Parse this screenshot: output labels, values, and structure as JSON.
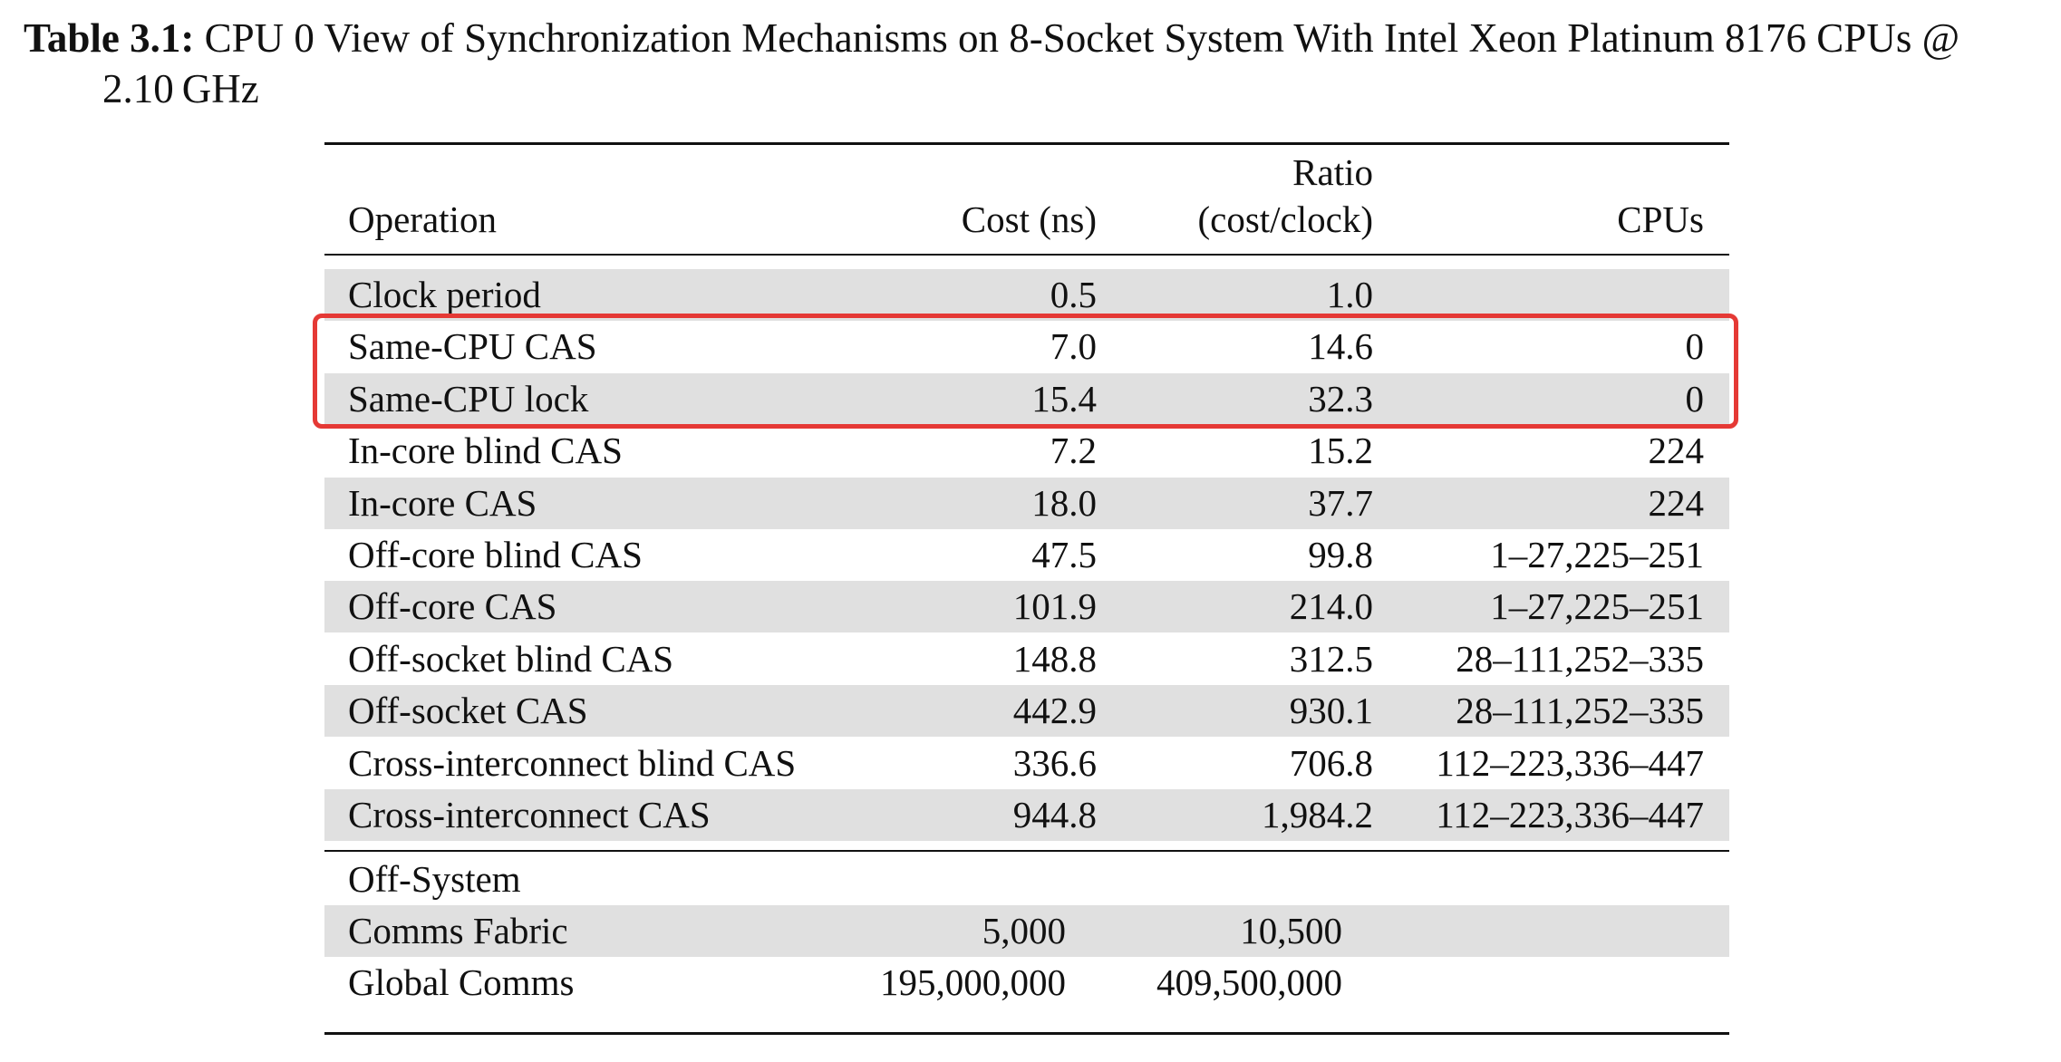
{
  "caption": {
    "label": "Table 3.1:",
    "line1": "CPU 0 View of Synchronization Mechanisms on 8-Socket System With Intel Xeon Platinum 8176 CPUs @",
    "line2": "2.10 GHz"
  },
  "table": {
    "headers": {
      "operation": "Operation",
      "cost": "Cost (ns)",
      "ratio_top": "Ratio",
      "ratio_bottom": "(cost/clock)",
      "cpus": "CPUs"
    },
    "rows": [
      {
        "operation": "Clock period",
        "cost": "0.5",
        "ratio": "1.0",
        "cpus": ""
      },
      {
        "operation": "Same-CPU CAS",
        "cost": "7.0",
        "ratio": "14.6",
        "cpus": "0"
      },
      {
        "operation": "Same-CPU lock",
        "cost": "15.4",
        "ratio": "32.3",
        "cpus": "0"
      },
      {
        "operation": "In-core blind CAS",
        "cost": "7.2",
        "ratio": "15.2",
        "cpus": "224"
      },
      {
        "operation": "In-core CAS",
        "cost": "18.0",
        "ratio": "37.7",
        "cpus": "224"
      },
      {
        "operation": "Off-core blind CAS",
        "cost": "47.5",
        "ratio": "99.8",
        "cpus": "1–27,225–251"
      },
      {
        "operation": "Off-core CAS",
        "cost": "101.9",
        "ratio": "214.0",
        "cpus": "1–27,225–251"
      },
      {
        "operation": "Off-socket blind CAS",
        "cost": "148.8",
        "ratio": "312.5",
        "cpus": "28–111,252–335"
      },
      {
        "operation": "Off-socket CAS",
        "cost": "442.9",
        "ratio": "930.1",
        "cpus": "28–111,252–335"
      },
      {
        "operation": "Cross-interconnect blind CAS",
        "cost": "336.6",
        "ratio": "706.8",
        "cpus": "112–223,336–447"
      },
      {
        "operation": "Cross-interconnect CAS",
        "cost": "944.8",
        "ratio": "1,984.2",
        "cpus": "112–223,336–447"
      }
    ],
    "off_system": {
      "heading": "Off-System",
      "rows": [
        {
          "operation": "Comms Fabric",
          "cost": "5,000",
          "ratio": "10,500"
        },
        {
          "operation": "Global Comms",
          "cost": "195,000,000",
          "ratio": "409,500,000"
        }
      ]
    }
  },
  "highlight": {
    "color": "#e53935",
    "rows_highlighted": [
      "Same-CPU CAS",
      "Same-CPU lock"
    ]
  }
}
